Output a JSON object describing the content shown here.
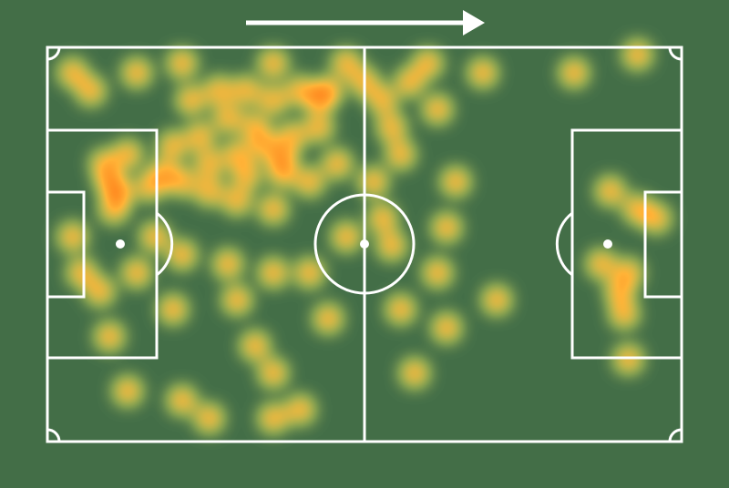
{
  "chart_data": {
    "type": "heatmap",
    "xlim": [
      0,
      105
    ],
    "ylim": [
      0,
      68
    ],
    "x": [
      10.3,
      11,
      9.5,
      13.3,
      19.3,
      22.3,
      26.8,
      31.4,
      35.9,
      40.4,
      44.9,
      46.5,
      41.9,
      37.4,
      32.9,
      28.4,
      23.8,
      29.9,
      34.4,
      25.3,
      20.8,
      38.9,
      43.4,
      48,
      37.4,
      31.4,
      26.8,
      55.5,
      57,
      58.5,
      60,
      52.5,
      64.6,
      54,
      55.5,
      17,
      33,
      39,
      45,
      12,
      4.2,
      7.2,
      14.8,
      22.3,
      37.4,
      49.5,
      63,
      72.1,
      87.2,
      97.7,
      14.8,
      10.3,
      20.8,
      31.4,
      34.4,
      37.4,
      41.9,
      37.4,
      26.8,
      22.3,
      13.3,
      46.5,
      43.4,
      58.5,
      60.8,
      66.1,
      64.6,
      66.1,
      74.4,
      67.6,
      93.2,
      97.7,
      100.8,
      96.2,
      91.7,
      94.7,
      95.5,
      96.2,
      4.2,
      5.7,
      8.7,
      17.8,
      22.3,
      29.9,
      37.4,
      49.5,
      57
    ],
    "values": [
      23.2,
      27.9,
      20.1,
      18.5,
      21.7,
      23.2,
      20.1,
      18.5,
      17,
      15.4,
      13.8,
      7.5,
      7.5,
      9.1,
      7.5,
      7.5,
      9.1,
      12.2,
      13.8,
      15.4,
      17,
      21.7,
      23.2,
      20.1,
      27.9,
      26.4,
      24.8,
      9.1,
      13.8,
      18.5,
      6,
      6,
      10.7,
      23.2,
      29.5,
      24,
      22,
      19,
      9,
      25,
      4.4,
      7.5,
      4.4,
      2.8,
      2.8,
      2.8,
      2.8,
      4.4,
      4.4,
      1.3,
      38.9,
      49.9,
      45.2,
      43.6,
      51.5,
      56.2,
      62.5,
      64,
      64,
      60.9,
      59.3,
      46.8,
      38.9,
      45.2,
      56.2,
      48.4,
      38.9,
      31.1,
      43.6,
      23.2,
      24.8,
      27.9,
      29.5,
      38.9,
      37.4,
      42.1,
      46,
      53.8,
      32.7,
      38.9,
      42.1,
      32.7,
      35.8,
      37.4,
      38.9,
      32.7,
      34.2
    ]
  }
}
